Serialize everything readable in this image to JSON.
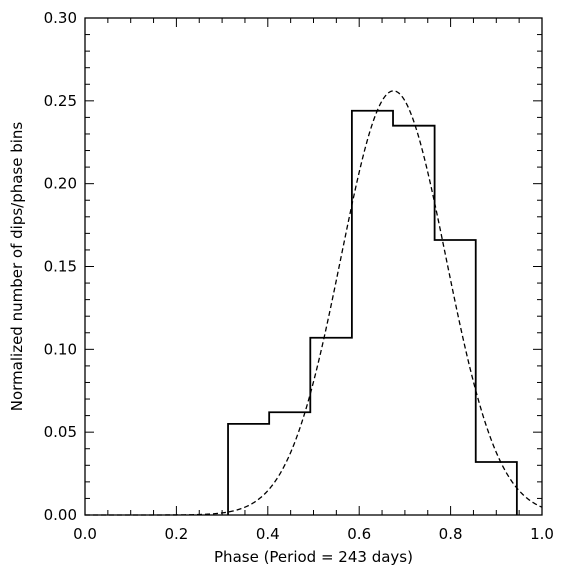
{
  "chart_data": {
    "type": "line",
    "title": "",
    "xlabel": "Phase (Period = 243 days)",
    "ylabel": "Normalized number of dips/phase bins",
    "xlim": [
      0.0,
      1.0
    ],
    "ylim": [
      0.0,
      0.3
    ],
    "x_ticks": [
      0.0,
      0.2,
      0.4,
      0.6,
      0.8,
      1.0
    ],
    "x_tick_labels": [
      "0.0",
      "0.2",
      "0.4",
      "0.6",
      "0.8",
      "1.0"
    ],
    "y_ticks": [
      0.0,
      0.05,
      0.1,
      0.15,
      0.2,
      0.25,
      0.3
    ],
    "y_tick_labels": [
      "0.00",
      "0.05",
      "0.10",
      "0.15",
      "0.20",
      "0.25",
      "0.30"
    ],
    "grid": false,
    "legend": "none",
    "series": [
      {
        "style": "solid-step",
        "bin_edges": [
          0.313,
          0.403,
          0.493,
          0.584,
          0.674,
          0.765,
          0.855,
          0.945
        ],
        "values": [
          0.055,
          0.062,
          0.107,
          0.244,
          0.235,
          0.166,
          0.032
        ]
      },
      {
        "style": "dashed",
        "function": "gaussian",
        "amplitude": 0.256,
        "mean": 0.675,
        "sigma": 0.115
      }
    ]
  }
}
